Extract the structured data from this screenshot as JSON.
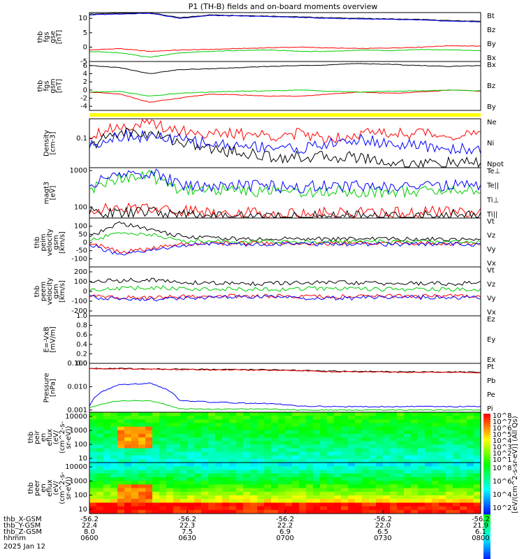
{
  "chart_data": {
    "title": "P1 (TH-B) fields and on-board moments overview",
    "panels": [
      {
        "key": "fgs_gse",
        "type": "line",
        "ylabel": [
          "thb",
          "fgs",
          "gse",
          "[nT]"
        ],
        "yrange": [
          -5,
          12
        ],
        "yticks": [
          "10",
          "5",
          "0",
          "-5"
        ],
        "ytick_values": [
          10,
          5,
          0,
          -5
        ],
        "series": [
          {
            "name": "Bt",
            "color": "#000000",
            "values": [
              11.5,
              11.8,
              12,
              10.2,
              11.2,
              11,
              10.8,
              10.5,
              10.2,
              10,
              9.8,
              9.6,
              9.2,
              9
            ]
          },
          {
            "name": "Bz",
            "color": "#ff0000",
            "values": [
              -1,
              -0.5,
              -1.5,
              -1,
              -0.8,
              -0.5,
              -0.2,
              0,
              -0.3,
              -0.5,
              -0.3,
              0,
              0.5,
              0.3
            ]
          },
          {
            "name": "By",
            "color": "#00cc00",
            "values": [
              -1.5,
              -2,
              -3.5,
              -2,
              -1.5,
              -1.2,
              -1,
              -1.5,
              -1.5,
              -1,
              -1.2,
              -0.8,
              -1,
              -1.2
            ]
          },
          {
            "name": "Bx",
            "color": "#0000ff",
            "values": [
              11.2,
              11.5,
              11.8,
              10,
              11,
              10.8,
              10.6,
              10.3,
              10,
              9.8,
              9.6,
              9.4,
              9,
              8.8
            ]
          }
        ]
      },
      {
        "key": "fgs_gsm",
        "type": "line",
        "ylabel": [
          "thb",
          "fgs",
          "gsm",
          "[nT]"
        ],
        "yrange": [
          -5,
          7
        ],
        "yticks": [
          "6",
          "4",
          "2",
          "0",
          "-2",
          "-4"
        ],
        "ytick_values": [
          6,
          4,
          2,
          0,
          -2,
          -4
        ],
        "series": [
          {
            "name": "Bx",
            "color": "#000000",
            "values": [
              6,
              5.5,
              4,
              5,
              5.2,
              5.5,
              5.8,
              6,
              6.2,
              6.5,
              6.3,
              6,
              5.8,
              6
            ]
          },
          {
            "name": "Bz",
            "color": "#ff0000",
            "values": [
              -0.5,
              -1,
              -3,
              -2,
              -1,
              -1.2,
              -1.5,
              -1.5,
              -1,
              -0.5,
              -0.8,
              -0.5,
              0,
              -0.3
            ]
          },
          {
            "name": "By",
            "color": "#00cc00",
            "values": [
              -0.5,
              -0.3,
              -1.5,
              -0.8,
              -0.5,
              -0.3,
              -0.2,
              0,
              -0.3,
              -0.5,
              -0.3,
              -0.2,
              0,
              -0.2
            ]
          }
        ]
      },
      {
        "key": "density",
        "type": "line",
        "ylabel": [
          "Density",
          "[cm-3]"
        ],
        "yrange": [
          0.015,
          0.35
        ],
        "log": true,
        "yticks": [
          "0.1"
        ],
        "ytick_values": [
          0.1
        ],
        "series": [
          {
            "name": "Ne",
            "color": "#ff0000",
            "values": [
              0.12,
              0.22,
              0.25,
              0.17,
              0.13,
              0.13,
              0.12,
              0.13,
              0.1,
              0.14,
              0.14,
              0.14,
              0.12,
              0.13
            ]
          },
          {
            "name": "Ni",
            "color": "#000000",
            "values": [
              0.05,
              0.15,
              0.13,
              0.08,
              0.05,
              0.04,
              0.03,
              0.03,
              0.03,
              0.03,
              0.02,
              0.02,
              0.02,
              0.02
            ]
          },
          {
            "name": "Npot",
            "color": "#0000ff",
            "values": [
              0.06,
              0.12,
              0.11,
              0.09,
              0.07,
              0.06,
              0.06,
              0.05,
              0.07,
              0.09,
              0.07,
              0.06,
              0.05,
              0.05
            ]
          }
        ]
      },
      {
        "key": "temperature",
        "type": "line",
        "ylabel": [
          "magt3",
          "[eV]"
        ],
        "yrange": [
          50,
          1200
        ],
        "log": true,
        "yticks": [
          "1000",
          "100"
        ],
        "ytick_values": [
          1000,
          100
        ],
        "series": [
          {
            "name": "Te⊥",
            "color": "#ff0000",
            "values": [
              90,
              85,
              100,
              80,
              75,
              70,
              70,
              68,
              70,
              70,
              68,
              70,
              75,
              80
            ]
          },
          {
            "name": "Te||",
            "color": "#000000",
            "values": [
              70,
              65,
              75,
              60,
              58,
              55,
              55,
              52,
              55,
              55,
              53,
              55,
              58,
              60
            ]
          },
          {
            "name": "Ti⊥",
            "color": "#00cc00",
            "values": [
              250,
              650,
              700,
              300,
              300,
              280,
              280,
              260,
              280,
              270,
              260,
              270,
              280,
              300
            ]
          },
          {
            "name": "Ti||",
            "color": "#0000ff",
            "values": [
              350,
              800,
              850,
              400,
              380,
              380,
              370,
              350,
              380,
              370,
              360,
              380,
              390,
              420
            ]
          }
        ]
      },
      {
        "key": "peim_velocity",
        "type": "line",
        "ylabel": [
          "thb",
          "peim",
          "velocity",
          "gsm",
          "[km/s]"
        ],
        "yrange": [
          -150,
          150
        ],
        "yticks": [
          "100",
          "50",
          "0",
          "-50",
          "-100"
        ],
        "ytick_values": [
          100,
          50,
          0,
          -50,
          -100
        ],
        "series": [
          {
            "name": "Vt",
            "color": "#000000",
            "values": [
              30,
              120,
              80,
              40,
              30,
              20,
              20,
              25,
              20,
              25,
              20,
              20,
              20,
              25
            ]
          },
          {
            "name": "Vz",
            "color": "#ff0000",
            "values": [
              0,
              -60,
              -40,
              -10,
              -5,
              -5,
              -5,
              -5,
              -5,
              -5,
              -5,
              -5,
              -5,
              -5
            ]
          },
          {
            "name": "Vy",
            "color": "#00cc00",
            "values": [
              10,
              60,
              50,
              10,
              10,
              5,
              5,
              5,
              5,
              5,
              5,
              5,
              5,
              5
            ]
          },
          {
            "name": "Vx",
            "color": "#0000ff",
            "values": [
              -10,
              -80,
              -50,
              -20,
              -10,
              -10,
              -10,
              -10,
              -10,
              -10,
              -10,
              -10,
              -10,
              -10
            ]
          }
        ]
      },
      {
        "key": "peem_velocity",
        "type": "line",
        "ylabel": [
          "thb",
          "peem",
          "velocity",
          "gsm",
          "[km/s]"
        ],
        "yrange": [
          -250,
          250
        ],
        "yticks": [
          "200",
          "100",
          "0",
          "-100",
          "-200"
        ],
        "ytick_values": [
          200,
          100,
          0,
          -100,
          -200
        ],
        "series": [
          {
            "name": "Vt",
            "color": "#000000",
            "values": [
              100,
              110,
              120,
              90,
              85,
              80,
              80,
              85,
              90,
              85,
              80,
              80,
              80,
              85
            ]
          },
          {
            "name": "Vz",
            "color": "#ff0000",
            "values": [
              -50,
              -60,
              -70,
              -55,
              -50,
              -50,
              -50,
              -50,
              -55,
              -50,
              -50,
              -50,
              -50,
              -50
            ]
          },
          {
            "name": "Vy",
            "color": "#00cc00",
            "values": [
              20,
              30,
              40,
              30,
              25,
              20,
              20,
              25,
              30,
              25,
              20,
              20,
              20,
              25
            ]
          },
          {
            "name": "Vx",
            "color": "#0000ff",
            "values": [
              -60,
              -70,
              -80,
              -70,
              -65,
              -60,
              -60,
              -65,
              -70,
              -65,
              -60,
              -60,
              -60,
              -65
            ]
          }
        ]
      },
      {
        "key": "efield",
        "type": "line",
        "ylabel": [
          "E=-VxB",
          "[mV/m]"
        ],
        "yrange": [
          0,
          1
        ],
        "yticks": [
          "1.0",
          "0.8",
          "0.6",
          "0.4",
          "0.2",
          "0.0"
        ],
        "ytick_values": [
          1,
          0.8,
          0.6,
          0.4,
          0.2,
          0
        ],
        "series": [
          {
            "name": "Ez",
            "color": "#ff0000",
            "values": []
          },
          {
            "name": "Ey",
            "color": "#00cc00",
            "values": []
          },
          {
            "name": "Ex",
            "color": "#0000ff",
            "values": []
          }
        ]
      },
      {
        "key": "pressure",
        "type": "line",
        "ylabel": [
          "Pressure",
          "[nPa]"
        ],
        "yrange": [
          0.0008,
          0.1
        ],
        "log": true,
        "yticks": [
          "0.100",
          "0.010",
          "0.001"
        ],
        "ytick_values": [
          0.1,
          0.01,
          0.001
        ],
        "series": [
          {
            "name": "Pt",
            "color": "#000000",
            "values": [
              0.06,
              0.06,
              0.058,
              0.056,
              0.055,
              0.054,
              0.053,
              0.05,
              0.046,
              0.045,
              0.044,
              0.043,
              0.043,
              0.042
            ]
          },
          {
            "name": "Pb",
            "color": "#ff0000",
            "values": [
              0.058,
              0.058,
              0.056,
              0.054,
              0.053,
              0.052,
              0.051,
              0.048,
              0.044,
              0.043,
              0.042,
              0.041,
              0.041,
              0.04
            ]
          },
          {
            "name": "Pe",
            "color": "#00cc00",
            "values": [
              0.0013,
              0.0025,
              0.0025,
              0.0011,
              0.0011,
              0.0011,
              0.0011,
              0.001,
              0.001,
              0.001,
              0.001,
              0.001,
              0.001,
              0.001
            ]
          },
          {
            "name": "Pi",
            "color": "#0000ff",
            "values": [
              0.0015,
              0.012,
              0.014,
              0.0025,
              0.0022,
              0.002,
              0.0019,
              0.0015,
              0.0014,
              0.0014,
              0.0014,
              0.0014,
              0.0014,
              0.0014
            ]
          }
        ]
      },
      {
        "key": "peir_eflux",
        "type": "heatmap",
        "ylabel": [
          "thb",
          "peir",
          "en",
          "eflux",
          "(eV/",
          "(cm^2-s-",
          "sr-eV))"
        ],
        "yticks": [
          "10000",
          "1000",
          "100",
          "10"
        ],
        "ytick_values": [
          10000,
          1000,
          100,
          10
        ]
      },
      {
        "key": "peer_eflux",
        "type": "heatmap",
        "ylabel": [
          "thb",
          "peer",
          "en",
          "eflux",
          "(eV/",
          "(cm^2-s-",
          "sr-eV))"
        ],
        "yticks": [
          "10000",
          "1000",
          "100",
          "10"
        ],
        "ytick_values": [
          10000,
          1000,
          100,
          10
        ]
      }
    ],
    "colorbar": {
      "label": "[eV/(cm^2-s-sr-eV)] (All Qs)",
      "top_ticks": [
        "10^8",
        "10^7",
        "10^6",
        "10^5",
        "10^4",
        "10^3",
        "10^2",
        "10^1"
      ],
      "bottom_ticks": [
        "10^8",
        "10^6",
        "10^4",
        "10^2"
      ]
    },
    "x_axis": {
      "ticks": [
        "0600",
        "0630",
        "0700",
        "0730",
        "0800"
      ],
      "rows": [
        {
          "label": "thb_X-GSM",
          "values": [
            "-56.2",
            "-56.2",
            "-56.2",
            "-56.2",
            "-56.2"
          ]
        },
        {
          "label": "thb_Y-GSM",
          "values": [
            "22.4",
            "22.3",
            "22.2",
            "22.0",
            "21.9"
          ]
        },
        {
          "label": "thb_Z-GSM",
          "values": [
            "8.0",
            "7.5",
            "6.9",
            "6.5",
            "6.1"
          ]
        },
        {
          "label": "hhmm",
          "values": [
            "0600",
            "0630",
            "0700",
            "0730",
            "0800"
          ]
        }
      ],
      "date": "2025 Jan 12"
    },
    "colors": {
      "bar": "#ffff00"
    }
  }
}
